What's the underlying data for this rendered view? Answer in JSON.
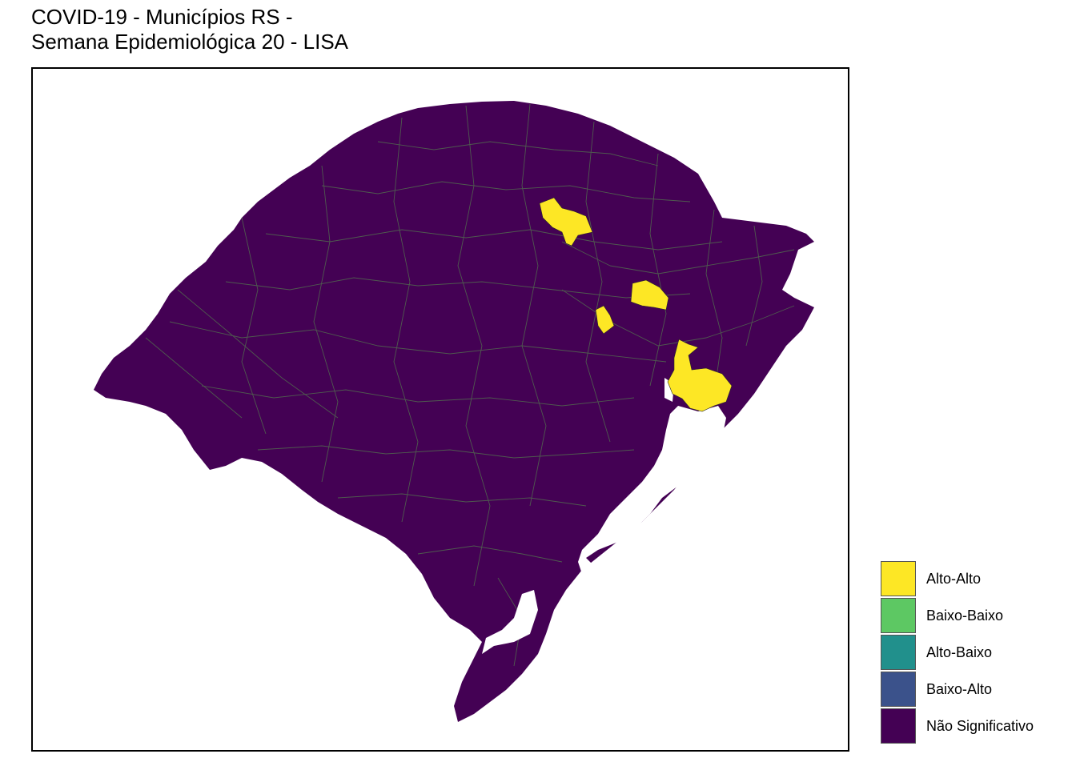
{
  "title": {
    "line1": "COVID-19 - Municípios RS -",
    "line2": "Semana Epidemiológica 20 - LISA"
  },
  "colors": {
    "alto_alto": "#FDE725",
    "baixo_baixo": "#5DC863",
    "alto_baixo": "#21908C",
    "baixo_alto": "#3B528B",
    "nao_significativo": "#440154",
    "borders": "#4f5a4f",
    "water": "#ffffff"
  },
  "map": {
    "region": "Rio Grande do Sul",
    "clusters": [
      {
        "category": "Alto-Alto",
        "area": "north-central"
      },
      {
        "category": "Alto-Alto",
        "area": "serra-gaucha"
      },
      {
        "category": "Alto-Alto",
        "area": "vale"
      },
      {
        "category": "Alto-Alto",
        "area": "porto-alegre-metro"
      }
    ]
  },
  "legend": {
    "items": [
      {
        "label": "Alto-Alto",
        "color": "#FDE725"
      },
      {
        "label": "Baixo-Baixo",
        "color": "#5DC863"
      },
      {
        "label": "Alto-Baixo",
        "color": "#21908C"
      },
      {
        "label": "Baixo-Alto",
        "color": "#3B528B"
      },
      {
        "label": "Não Significativo",
        "color": "#440154"
      }
    ]
  }
}
